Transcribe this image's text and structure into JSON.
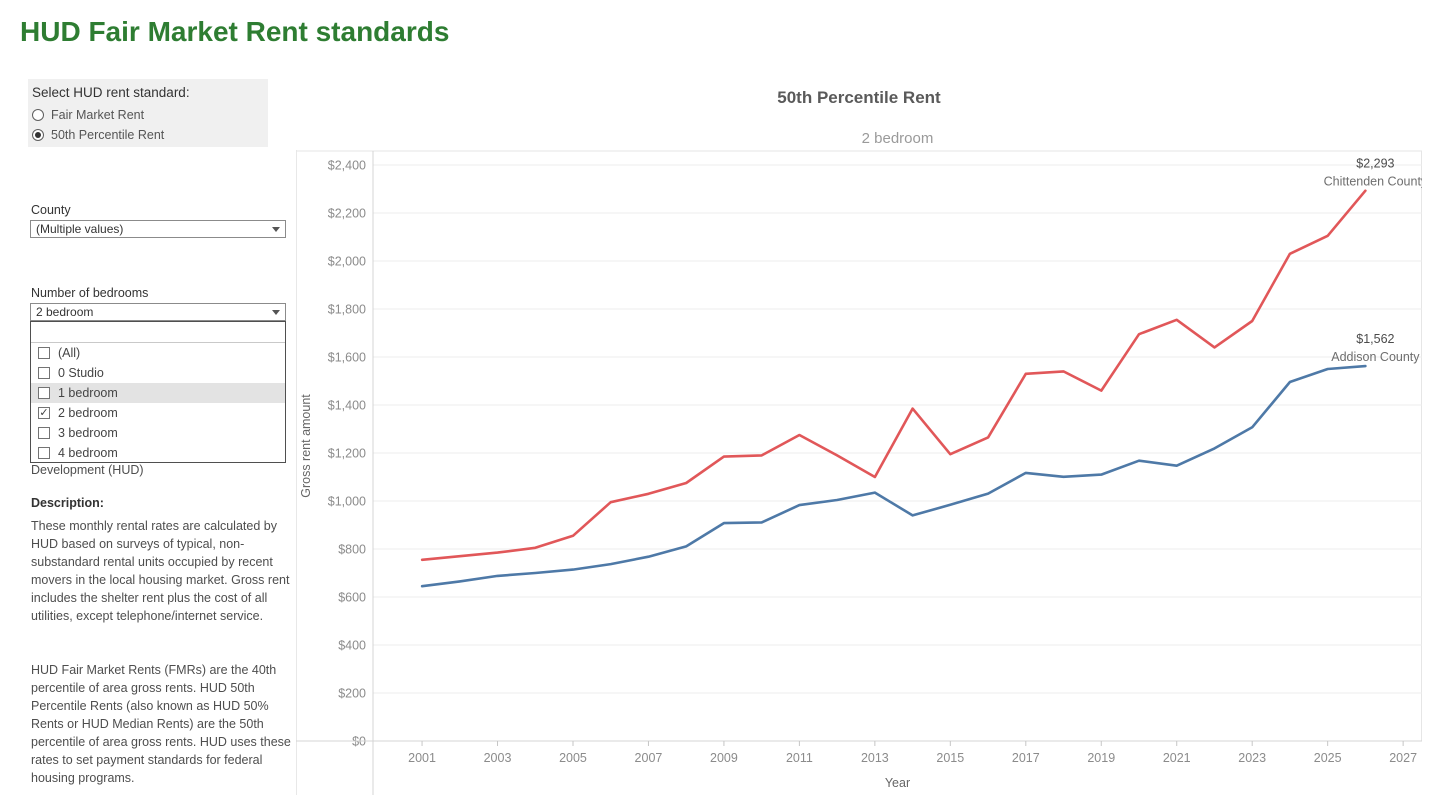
{
  "page": {
    "title": "HUD Fair Market Rent standards"
  },
  "sidebar": {
    "rent_standard": {
      "label": "Select HUD rent standard:",
      "options": [
        {
          "label": "Fair Market Rent",
          "selected": false
        },
        {
          "label": "50th Percentile Rent",
          "selected": true
        }
      ]
    },
    "county_filter": {
      "label": "County",
      "value": "(Multiple values)"
    },
    "bedrooms_filter": {
      "label": "Number of bedrooms",
      "value": "2 bedroom",
      "dropdown_options": [
        {
          "label": "(All)",
          "checked": false,
          "highlighted": false
        },
        {
          "label": "0 Studio",
          "checked": false,
          "highlighted": false
        },
        {
          "label": "1 bedroom",
          "checked": false,
          "highlighted": true
        },
        {
          "label": "2 bedroom",
          "checked": true,
          "highlighted": false
        },
        {
          "label": "3 bedroom",
          "checked": false,
          "highlighted": false
        },
        {
          "label": "4 bedroom",
          "checked": false,
          "highlighted": false
        }
      ]
    },
    "source_tail": "Development (HUD)",
    "description_heading": "Description:",
    "description_p1": "These monthly rental rates are calculated by HUD based on surveys of typical, non-substandard rental units occupied by recent movers in the local housing market. Gross rent includes the shelter rent plus the cost of all utilities, except telephone/internet service.",
    "description_p2": "HUD Fair Market Rents (FMRs) are the 40th percentile of area gross rents. HUD 50th Percentile Rents (also known as HUD 50% Rents or HUD Median Rents) are the 50th percentile of area gross rents. HUD uses these rates to set payment standards for federal housing programs."
  },
  "chart_data": {
    "type": "line",
    "title": "50th Percentile Rent",
    "subtitle": "2 bedroom",
    "xlabel": "Year",
    "ylabel": "Gross rent amount",
    "xlim": [
      1999.7,
      2027.5
    ],
    "ylim": [
      0,
      2400
    ],
    "y_tick_step": 200,
    "y_tick_labels": [
      "$0",
      "$200",
      "$400",
      "$600",
      "$800",
      "$1,000",
      "$1,200",
      "$1,400",
      "$1,600",
      "$1,800",
      "$2,000",
      "$2,200",
      "$2,400"
    ],
    "x_ticks": [
      2001,
      2003,
      2005,
      2007,
      2009,
      2011,
      2013,
      2015,
      2017,
      2019,
      2021,
      2023,
      2025,
      2027
    ],
    "grid": true,
    "legend_position": "end-of-line-labels",
    "x": [
      2001,
      2002,
      2003,
      2004,
      2005,
      2006,
      2007,
      2008,
      2009,
      2010,
      2011,
      2012,
      2013,
      2014,
      2015,
      2016,
      2017,
      2018,
      2019,
      2020,
      2021,
      2022,
      2023,
      2024,
      2025,
      2026
    ],
    "series": [
      {
        "name": "Chittenden County",
        "color": "#e15759",
        "end_label_value": "$2,293",
        "values": [
          755,
          770,
          785,
          805,
          855,
          995,
          1030,
          1075,
          1185,
          1190,
          1275,
          1190,
          1100,
          1385,
          1195,
          1265,
          1530,
          1540,
          1460,
          1695,
          1755,
          1640,
          1750,
          2030,
          2105,
          2293
        ]
      },
      {
        "name": "Addison County",
        "color": "#4e79a7",
        "end_label_value": "$1,562",
        "values": [
          645,
          665,
          688,
          700,
          714,
          737,
          768,
          811,
          908,
          911,
          983,
          1004,
          1035,
          940,
          984,
          1031,
          1117,
          1101,
          1110,
          1168,
          1147,
          1219,
          1307,
          1496,
          1550,
          1562
        ]
      }
    ]
  },
  "colors": {
    "title_green": "#2e7d32",
    "series_red": "#e15759",
    "series_blue": "#4e79a7",
    "gridline": "#ececec",
    "axis_line": "#d4d4d4",
    "tick_label": "#8b8b8b",
    "axis_title": "#666666",
    "annotation_value": "#4b4b4b",
    "annotation_name": "#6e6e6e",
    "panel_bg": "#f0f0f0"
  }
}
